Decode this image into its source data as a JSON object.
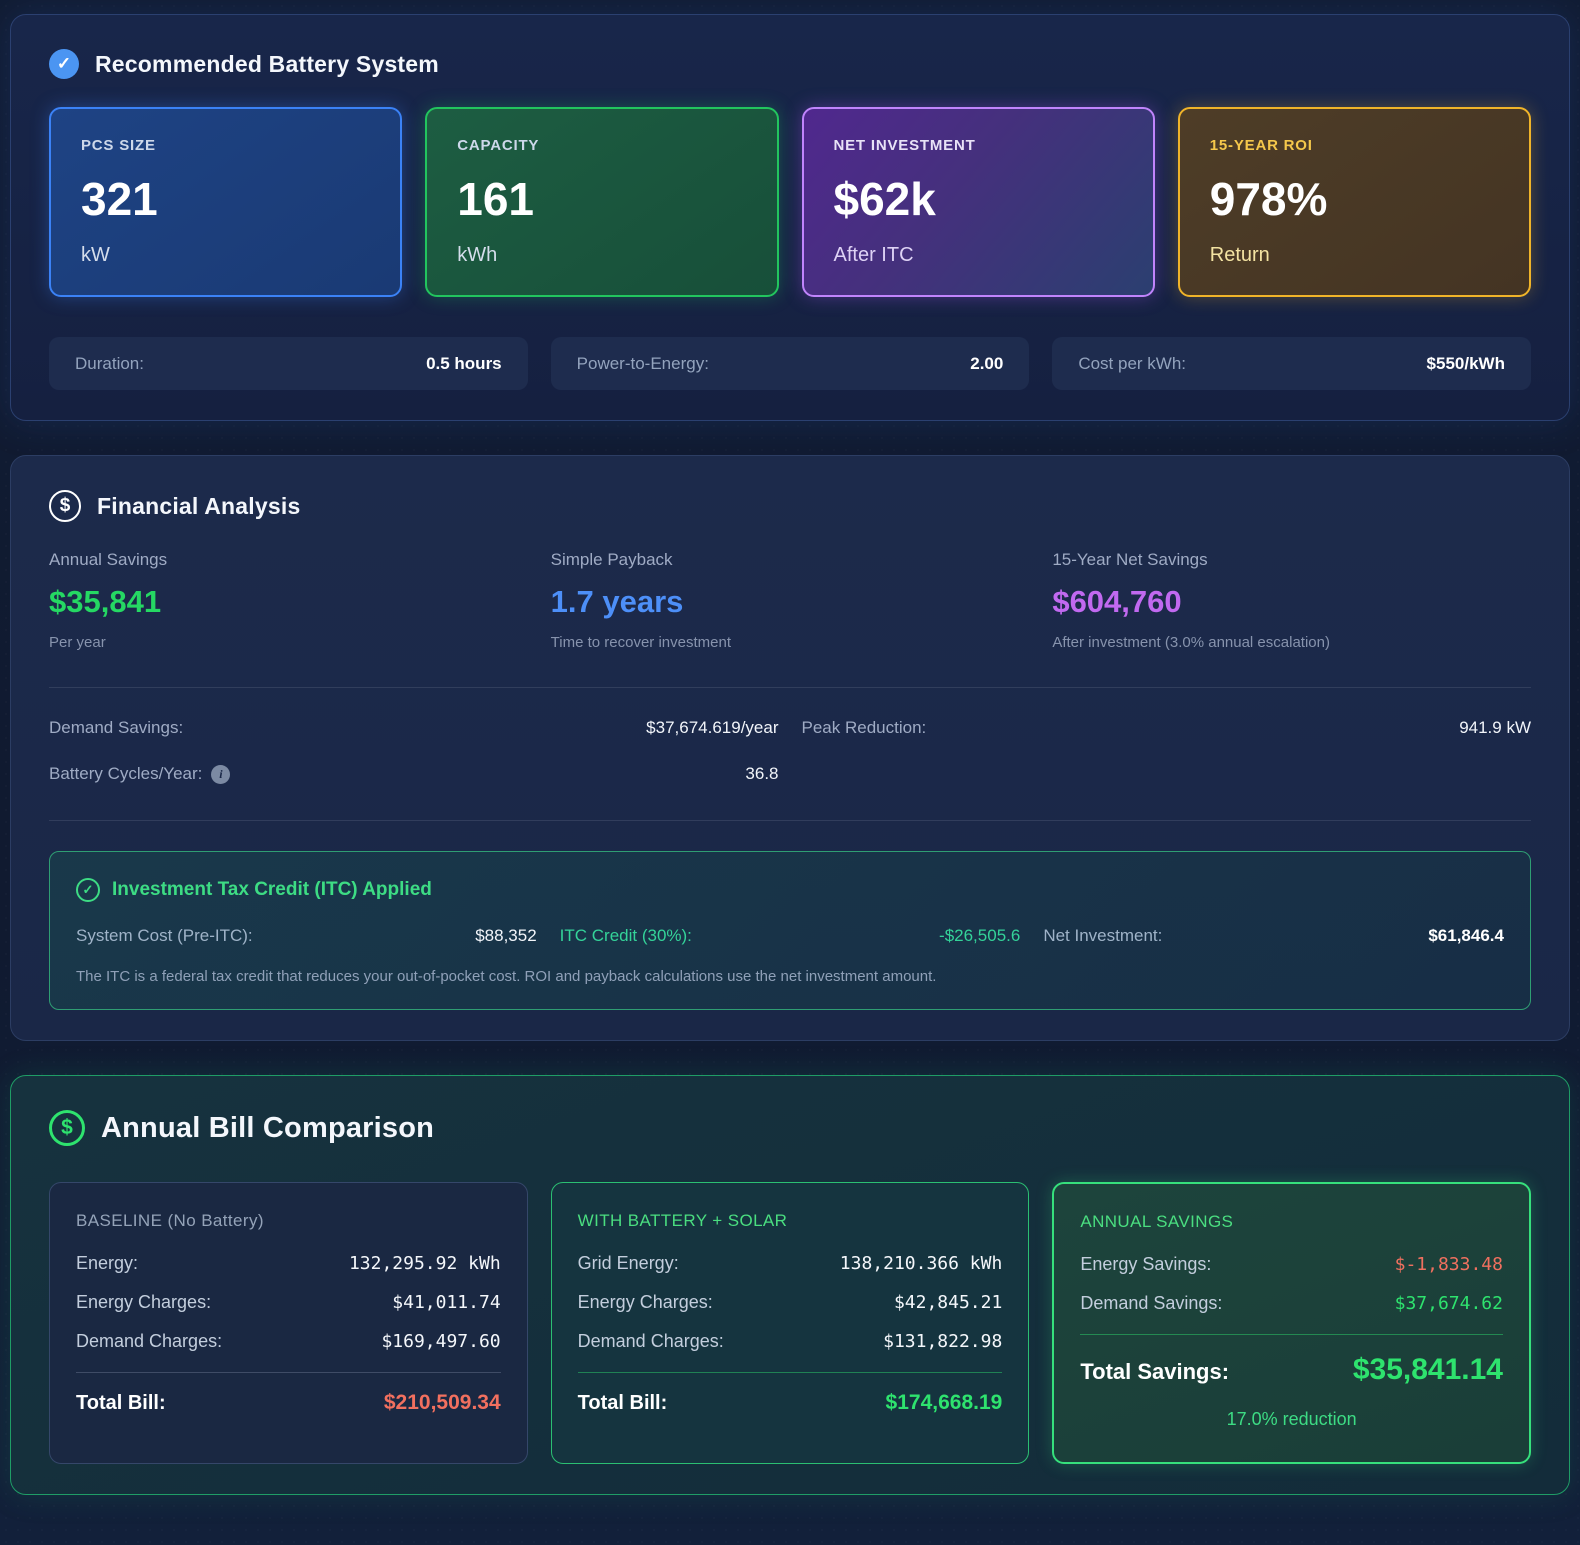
{
  "icons": {
    "check": "✓",
    "dollar": "$",
    "info": "i"
  },
  "recommended": {
    "title": "Recommended Battery System",
    "cards": [
      {
        "label": "PCS SIZE",
        "value": "321",
        "unit": "kW"
      },
      {
        "label": "CAPACITY",
        "value": "161",
        "unit": "kWh"
      },
      {
        "label": "NET INVESTMENT",
        "value": "$62k",
        "unit": "After ITC"
      },
      {
        "label": "15-YEAR ROI",
        "value": "978%",
        "unit": "Return"
      }
    ],
    "stats": [
      {
        "label": "Duration:",
        "value": "0.5 hours"
      },
      {
        "label": "Power-to-Energy:",
        "value": "2.00"
      },
      {
        "label": "Cost per kWh:",
        "value": "$550/kWh"
      }
    ]
  },
  "financial": {
    "title": "Financial Analysis",
    "metrics": [
      {
        "label": "Annual Savings",
        "value": "$35,841",
        "caption": "Per year",
        "color": "#25d863"
      },
      {
        "label": "Simple Payback",
        "value": "1.7 years",
        "caption": "Time to recover investment",
        "color": "#4d8ff8"
      },
      {
        "label": "15-Year Net Savings",
        "value": "$604,760",
        "caption": "After investment (3.0% annual escalation)",
        "color": "#c169f0"
      }
    ],
    "details": [
      {
        "label": "Demand Savings:",
        "value": "$37,674.619/year"
      },
      {
        "label": "Peak Reduction:",
        "value": "941.9 kW"
      },
      {
        "label": "Battery Cycles/Year:",
        "value": "36.8"
      }
    ],
    "itc": {
      "title": "Investment Tax Credit (ITC) Applied",
      "items": [
        {
          "label": "System Cost (Pre-ITC):",
          "value": "$88,352"
        },
        {
          "label": "ITC Credit (30%):",
          "value": "-$26,505.6"
        },
        {
          "label": "Net Investment:",
          "value": "$61,846.4"
        }
      ],
      "note": "The ITC is a federal tax credit that reduces your out-of-pocket cost. ROI and payback calculations use the net investment amount."
    }
  },
  "bills": {
    "title": "Annual Bill Comparison",
    "cards": [
      {
        "heading": "BASELINE (No Battery)",
        "rows": [
          {
            "label": "Energy:",
            "value": "132,295.92 kWh"
          },
          {
            "label": "Energy Charges:",
            "value": "$41,011.74"
          },
          {
            "label": "Demand Charges:",
            "value": "$169,497.60"
          }
        ],
        "total_label": "Total Bill:",
        "total_value": "$210,509.34"
      },
      {
        "heading": "WITH BATTERY + SOLAR",
        "rows": [
          {
            "label": "Grid Energy:",
            "value": "138,210.366 kWh"
          },
          {
            "label": "Energy Charges:",
            "value": "$42,845.21"
          },
          {
            "label": "Demand Charges:",
            "value": "$131,822.98"
          }
        ],
        "total_label": "Total Bill:",
        "total_value": "$174,668.19"
      },
      {
        "heading": "ANNUAL SAVINGS",
        "rows": [
          {
            "label": "Energy Savings:",
            "value": "$-1,833.48"
          },
          {
            "label": "Demand Savings:",
            "value": "$37,674.62"
          }
        ],
        "total_label": "Total Savings:",
        "total_value": "$35,841.14",
        "footnote": "17.0% reduction"
      }
    ]
  },
  "colors": {
    "accent_blue": "#3b82f6",
    "accent_green": "#22c55e",
    "accent_purple": "#c084fc",
    "accent_gold": "#f0b429",
    "negative_red": "#f0705f",
    "savings_green": "#2ee36e"
  }
}
